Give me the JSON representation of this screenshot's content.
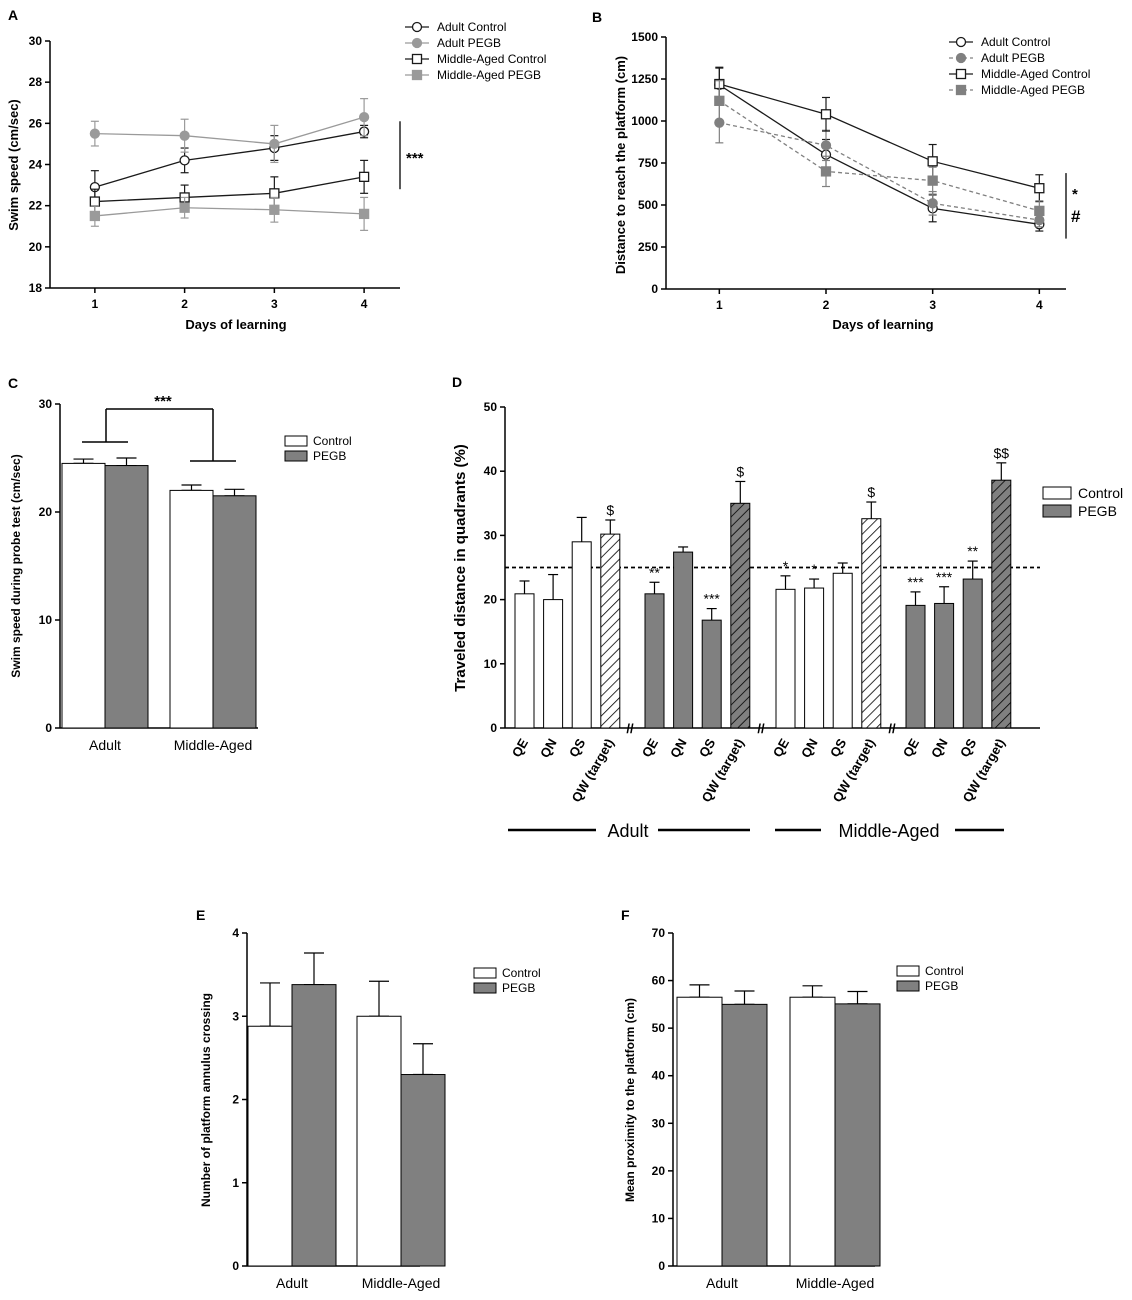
{
  "colors": {
    "black": "#1a1a1a",
    "grey": "#9a9a9a",
    "pegb": "#808080",
    "control": "#ffffff"
  },
  "chart_data": [
    {
      "id": "A",
      "panel_label": "A",
      "type": "line",
      "xlabel": "Days of learning",
      "ylabel": "Swim speed (cm/sec)",
      "x": [
        1,
        2,
        3,
        4
      ],
      "xlim": [
        0.5,
        4.4
      ],
      "ylim": [
        18,
        30
      ],
      "yticks": [
        18,
        20,
        22,
        24,
        26,
        28,
        30
      ],
      "yticklabels": [
        "18",
        "20",
        "22",
        "24",
        "26",
        "28",
        "30"
      ],
      "xticklabels": [
        "1",
        "2",
        "3",
        "4"
      ],
      "legend_position": "top-right",
      "series": [
        {
          "name": "Adult Control",
          "values": [
            22.9,
            24.2,
            24.8,
            25.6
          ],
          "errors": [
            0.8,
            0.6,
            0.6,
            0.3
          ],
          "marker": "circle-open",
          "color": "#1a1a1a",
          "dash": "solid"
        },
        {
          "name": "Adult PEGB",
          "values": [
            25.5,
            25.4,
            25.0,
            26.3
          ],
          "errors": [
            0.6,
            0.8,
            0.9,
            0.9
          ],
          "marker": "circle-filled",
          "color": "#9a9a9a",
          "dash": "solid"
        },
        {
          "name": "Middle-Aged Control",
          "values": [
            22.2,
            22.4,
            22.6,
            23.4
          ],
          "errors": [
            0.6,
            0.6,
            0.8,
            0.8
          ],
          "marker": "square-open",
          "color": "#1a1a1a",
          "dash": "solid"
        },
        {
          "name": "Middle-Aged PEGB",
          "values": [
            21.5,
            21.9,
            21.8,
            21.6
          ],
          "errors": [
            0.5,
            0.5,
            0.6,
            0.8
          ],
          "marker": "square-filled",
          "color": "#9a9a9a",
          "dash": "solid"
        }
      ],
      "annotations": [
        {
          "text": "***",
          "x": 4.3,
          "y": 24.8
        }
      ]
    },
    {
      "id": "B",
      "panel_label": "B",
      "type": "line",
      "xlabel": "Days of learning",
      "ylabel": "Distance to reach the platform (cm)",
      "x": [
        1,
        2,
        3,
        4
      ],
      "xlim": [
        0.5,
        4.25
      ],
      "ylim": [
        0,
        1500
      ],
      "yticks": [
        0,
        250,
        500,
        750,
        1000,
        1250,
        1500
      ],
      "yticklabels": [
        "0",
        "250",
        "500",
        "750",
        "1000",
        "1250",
        "1500"
      ],
      "xticklabels": [
        "1",
        "2",
        "3",
        "4"
      ],
      "legend_position": "top-right",
      "series": [
        {
          "name": "Adult Control",
          "values": [
            1215,
            800,
            480,
            385
          ],
          "errors": [
            100,
            90,
            80,
            40
          ],
          "marker": "circle-open",
          "color": "#1a1a1a",
          "dash": "solid"
        },
        {
          "name": "Adult PEGB",
          "values": [
            990,
            855,
            510,
            410
          ],
          "errors": [
            120,
            90,
            70,
            40
          ],
          "marker": "circle-filled",
          "color": "#808080",
          "dash": "dashed"
        },
        {
          "name": "Middle-Aged Control",
          "values": [
            1220,
            1040,
            760,
            600
          ],
          "errors": [
            100,
            100,
            100,
            80
          ],
          "marker": "square-open",
          "color": "#1a1a1a",
          "dash": "solid"
        },
        {
          "name": "Middle-Aged PEGB",
          "values": [
            1120,
            700,
            645,
            465
          ],
          "errors": [
            120,
            90,
            80,
            60
          ],
          "marker": "square-filled",
          "color": "#808080",
          "dash": "dashed"
        }
      ],
      "annotations": [
        {
          "text": "*",
          "x": 4.28,
          "y": 570
        },
        {
          "text": "#",
          "x": 4.28,
          "y": 440
        }
      ]
    },
    {
      "id": "C",
      "panel_label": "C",
      "type": "bar",
      "xlabel": "",
      "ylabel": "Swim speed during probe test (cm/sec)",
      "categories": [
        "Adult",
        "Middle-Aged"
      ],
      "ylim": [
        0,
        30
      ],
      "yticks": [
        0,
        10,
        20,
        30
      ],
      "yticklabels": [
        "0",
        "10",
        "20",
        "30"
      ],
      "legend_position": "top-right",
      "series": [
        {
          "name": "Control",
          "values": [
            24.5,
            22.0
          ],
          "errors": [
            0.4,
            0.5
          ]
        },
        {
          "name": "PEGB",
          "values": [
            24.3,
            21.5
          ],
          "errors": [
            0.7,
            0.6
          ]
        }
      ],
      "annotations": [
        {
          "text": "***"
        }
      ]
    },
    {
      "id": "D",
      "panel_label": "D",
      "type": "bar",
      "xlabel": "",
      "ylabel": "Traveled distance in quadrants (%)",
      "ylim": [
        0,
        50
      ],
      "yticks": [
        0,
        10,
        20,
        30,
        40,
        50
      ],
      "yticklabels": [
        "0",
        "10",
        "20",
        "30",
        "40",
        "50"
      ],
      "reference_line": 25,
      "legend_position": "top-right",
      "legend": [
        "Control",
        "PEGB"
      ],
      "groups": [
        {
          "name": "Adult",
          "condition": "Control",
          "categories": [
            "QE",
            "QN",
            "QS",
            "QW (target)"
          ],
          "values": [
            20.9,
            20.0,
            29.0,
            30.2
          ],
          "errors": [
            2.0,
            3.9,
            3.8,
            2.2
          ],
          "annotations": [
            "",
            "",
            "",
            "$"
          ]
        },
        {
          "name": "Adult",
          "condition": "PEGB",
          "categories": [
            "QE",
            "QN",
            "QS",
            "QW (target)"
          ],
          "values": [
            20.9,
            27.4,
            16.8,
            35.0
          ],
          "errors": [
            1.8,
            0.8,
            1.8,
            3.4
          ],
          "annotations": [
            "**",
            "",
            "***",
            "$"
          ]
        },
        {
          "name": "Middle-Aged",
          "condition": "Control",
          "categories": [
            "QE",
            "QN",
            "QS",
            "QW (target)"
          ],
          "values": [
            21.6,
            21.8,
            24.1,
            32.6
          ],
          "errors": [
            2.1,
            1.4,
            1.6,
            2.6
          ],
          "annotations": [
            "*",
            "*",
            "",
            "$"
          ]
        },
        {
          "name": "Middle-Aged",
          "condition": "PEGB",
          "categories": [
            "QE",
            "QN",
            "QS",
            "QW (target)"
          ],
          "values": [
            19.1,
            19.4,
            23.2,
            38.6
          ],
          "errors": [
            2.1,
            2.6,
            2.8,
            2.7
          ],
          "annotations": [
            "***",
            "***",
            "**",
            "$$"
          ]
        }
      ],
      "group_labels": [
        "Adult",
        "Middle-Aged"
      ],
      "axis_break": "//"
    },
    {
      "id": "E",
      "panel_label": "E",
      "type": "bar",
      "xlabel": "",
      "ylabel": "Number of platform annulus crossing",
      "categories": [
        "Adult",
        "Middle-Aged"
      ],
      "ylim": [
        0,
        4
      ],
      "yticks": [
        0,
        1,
        2,
        3,
        4
      ],
      "yticklabels": [
        "0",
        "1",
        "2",
        "3",
        "4"
      ],
      "legend_position": "top-right",
      "series": [
        {
          "name": "Control",
          "values": [
            2.88,
            3.0
          ],
          "errors": [
            0.52,
            0.42
          ]
        },
        {
          "name": "PEGB",
          "values": [
            3.38,
            2.3
          ],
          "errors": [
            0.38,
            0.37
          ]
        }
      ]
    },
    {
      "id": "F",
      "panel_label": "F",
      "type": "bar",
      "xlabel": "",
      "ylabel": "Mean proximity to the platform (cm)",
      "categories": [
        "Adult",
        "Middle-Aged"
      ],
      "ylim": [
        0,
        70
      ],
      "yticks": [
        0,
        10,
        20,
        30,
        40,
        50,
        60,
        70
      ],
      "yticklabels": [
        "0",
        "10",
        "20",
        "30",
        "40",
        "50",
        "60",
        "70"
      ],
      "legend_position": "top-right",
      "series": [
        {
          "name": "Control",
          "values": [
            56.5,
            56.5
          ],
          "errors": [
            2.6,
            2.4
          ]
        },
        {
          "name": "PEGB",
          "values": [
            55.0,
            55.1
          ],
          "errors": [
            2.8,
            2.6
          ]
        }
      ]
    }
  ]
}
